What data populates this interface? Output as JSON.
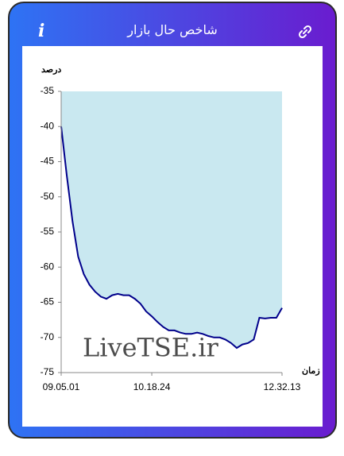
{
  "header": {
    "title": "شاخص حال بازار"
  },
  "chart_data": {
    "type": "area",
    "y_label": "درصد",
    "x_label": "زمان",
    "annotation": "LiveTSE.ir",
    "categories": [
      "09.05.01",
      null,
      null,
      null,
      null,
      null,
      null,
      null,
      null,
      null,
      null,
      null,
      null,
      null,
      null,
      null,
      "10.18.24",
      null,
      null,
      null,
      null,
      null,
      null,
      null,
      null,
      null,
      null,
      null,
      null,
      null,
      null,
      null,
      null,
      null,
      null,
      null,
      null,
      null,
      null,
      "12.32.13"
    ],
    "values": [
      -40,
      -47,
      -53.5,
      -58.5,
      -61,
      -62.5,
      -63.5,
      -64.2,
      -64.5,
      -64,
      -63.8,
      -64,
      -64,
      -64.5,
      -65.2,
      -66.3,
      -67,
      -67.8,
      -68.5,
      -69,
      -69,
      -69.3,
      -69.5,
      -69.5,
      -69.3,
      -69.5,
      -69.8,
      -70,
      -70,
      -70.3,
      -70.8,
      -71.5,
      -71,
      -70.8,
      -70.3,
      -67.2,
      -67.3,
      -67.2,
      -67.2,
      -65.8
    ],
    "color": "#00008b",
    "fill_color": "#c9e8f0",
    "ylim": [
      -75,
      -35
    ],
    "yticks": [
      -35,
      -40,
      -45,
      -50,
      -55,
      -60,
      -65,
      -70,
      -75
    ],
    "grid": false
  }
}
